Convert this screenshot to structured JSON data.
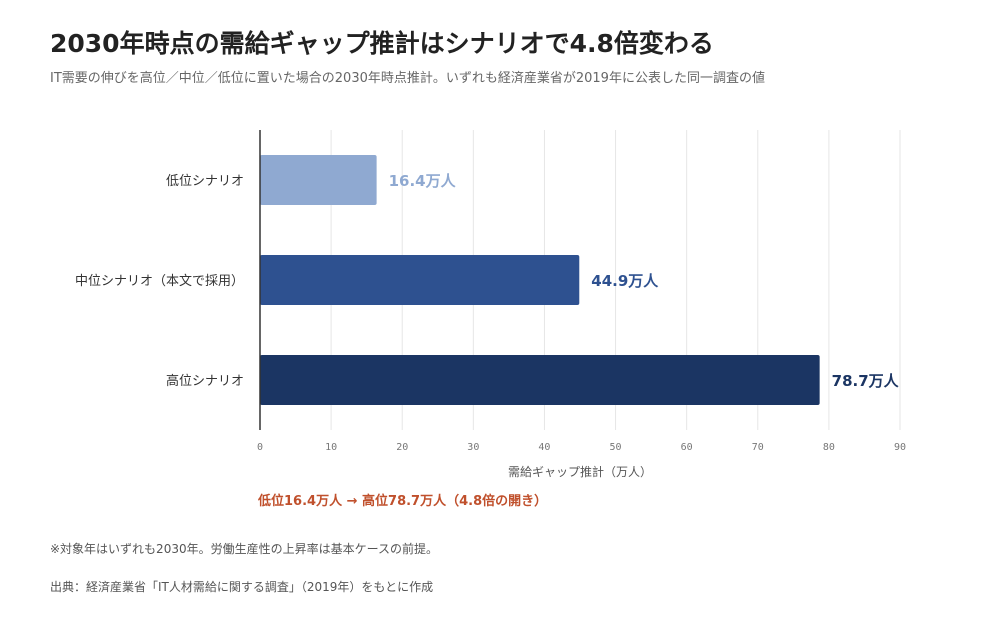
{
  "title": "2030年時点の需給ギャップ推計はシナリオで4.8倍変わる",
  "subtitle": "IT需要の伸びを高位／中位／低位に置いた場合の2030年時点推計。いずれも経済産業省が2019年に公表した同一調査の値",
  "highlight": "低位16.4万人 → 高位78.7万人（4.8倍の開き）",
  "note": "※対象年はいずれも2030年。労働生産性の上昇率は基本ケースの前提。",
  "source": "出典：経済産業省「IT人材需給に関する調査」（2019年）をもとに作成",
  "colors": {
    "low": "#8fa9d1",
    "mid": "#2e5190",
    "high": "#1b3563",
    "gridline": "#e6e6e6",
    "axis": "#333333",
    "highlight": "#c0502c"
  },
  "chart_data": {
    "type": "bar",
    "orientation": "horizontal",
    "categories": [
      "低位シナリオ",
      "中位シナリオ（本文で採用）",
      "高位シナリオ"
    ],
    "values": [
      16.4,
      44.9,
      78.7
    ],
    "value_labels": [
      "16.4万人",
      "44.9万人",
      "78.7万人"
    ],
    "bar_colors": [
      "#8fa9d1",
      "#2e5190",
      "#1b3563"
    ],
    "xlabel": "需給ギャップ推計（万人）",
    "xlim": [
      0,
      90
    ],
    "xticks": [
      0,
      10,
      20,
      30,
      40,
      50,
      60,
      70,
      80,
      90
    ],
    "grid": true
  }
}
